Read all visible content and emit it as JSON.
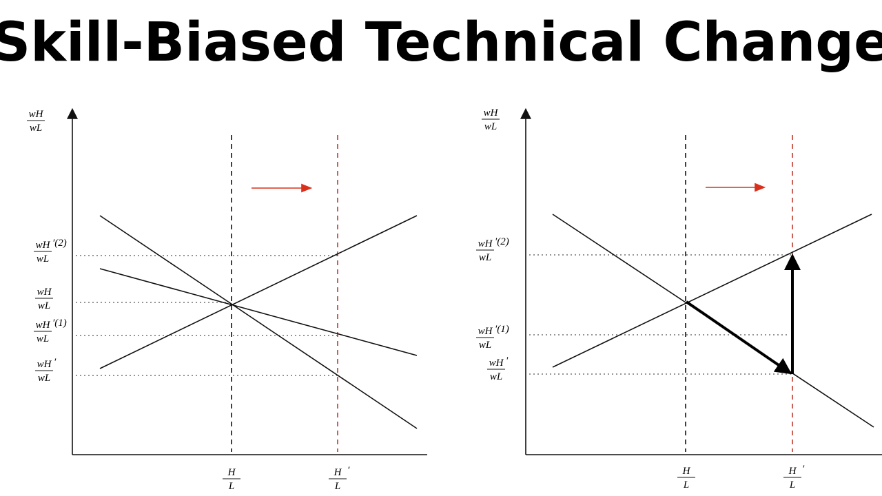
{
  "title": "Skill-Biased Technical Change",
  "panels": [
    {
      "y_axis_label": {
        "num": "wH",
        "den": "wL"
      },
      "y_labels": [
        {
          "num": "wH",
          "den": "wL",
          "suffix": "′(2)"
        },
        {
          "num": "wH",
          "den": "wL"
        },
        {
          "num": "wH",
          "den": "wL",
          "suffix": "′(1)"
        },
        {
          "num": "wH",
          "den": "wL",
          "suffix": "′"
        }
      ],
      "x_labels": [
        {
          "num": "H",
          "den": "L"
        },
        {
          "num": "H",
          "den": "L",
          "suffix": "′"
        }
      ]
    },
    {
      "y_axis_label": {
        "num": "wH",
        "den": "wL"
      },
      "y_labels": [
        {
          "num": "wH",
          "den": "wL",
          "suffix": "′(2)"
        },
        {
          "num": "wH",
          "den": "wL",
          "suffix": "′(1)"
        },
        {
          "num": "wH",
          "den": "wL",
          "suffix": "′"
        }
      ],
      "x_labels": [
        {
          "num": "H",
          "den": "L"
        },
        {
          "num": "H",
          "den": "L",
          "suffix": "′"
        }
      ]
    }
  ]
}
